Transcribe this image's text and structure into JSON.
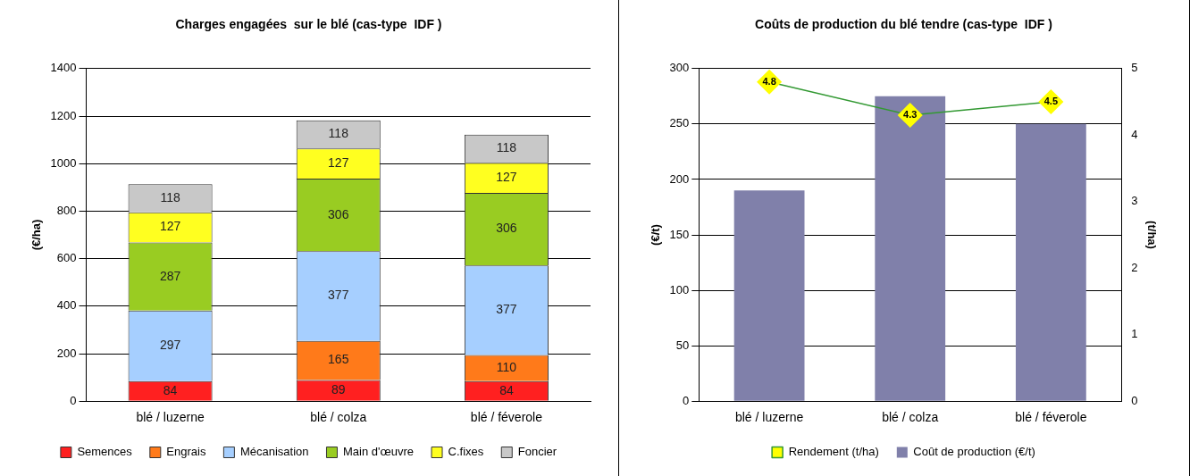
{
  "chart_data": [
    {
      "type": "bar",
      "title": "Charges engagées  sur le blé (cas-type  IDF )",
      "ylabel": "(€/ha)",
      "categories": [
        "blé / luzerne",
        "blé / colza",
        "blé / féverole"
      ],
      "stacked": true,
      "data_labels": true,
      "ylim": [
        0,
        1400
      ],
      "yticks": [
        0,
        200,
        400,
        600,
        800,
        1000,
        1200,
        1400
      ],
      "grid": "y",
      "legend": "bottom",
      "series": [
        {
          "name": "Semences",
          "color": "#ff2020",
          "values": [
            84,
            89,
            84
          ]
        },
        {
          "name": "Engrais",
          "color": "#ff7a1a",
          "values": [
            null,
            165,
            110
          ]
        },
        {
          "name": "Mécanisation",
          "color": "#a6cfff",
          "values": [
            297,
            377,
            377
          ]
        },
        {
          "name": "Main d'œuvre",
          "color": "#99cc22",
          "values": [
            287,
            306,
            306
          ]
        },
        {
          "name": "C.fixes",
          "color": "#ffff20",
          "values": [
            127,
            127,
            127
          ]
        },
        {
          "name": "Foncier",
          "color": "#c8c8c8",
          "values": [
            118,
            118,
            118
          ]
        }
      ]
    },
    {
      "type": "bar",
      "title": "Coûts de production du blé tendre (cas-type  IDF )",
      "ylabel": "(€/t)",
      "y2label": "(t/ha)",
      "categories": [
        "blé / luzerne",
        "blé / colza",
        "blé / féverole"
      ],
      "ylim": [
        0,
        300
      ],
      "yticks": [
        0,
        50,
        100,
        150,
        200,
        250,
        300
      ],
      "y2lim": [
        0,
        5
      ],
      "y2ticks": [
        0,
        1,
        2,
        3,
        4,
        5
      ],
      "grid": "y",
      "legend": "bottom",
      "marker": "diamond",
      "series": [
        {
          "name": "Coût de production (€/t)",
          "color": "#8080aa",
          "values": [
            190,
            275,
            250
          ]
        },
        {
          "name": "Rendement (t/ha)",
          "type": "line",
          "axis": "y2",
          "color": "#339933",
          "values": [
            4.8,
            4.3,
            4.5
          ],
          "value_labels": [
            "4.8",
            "4.3",
            "4.5"
          ]
        }
      ]
    }
  ]
}
